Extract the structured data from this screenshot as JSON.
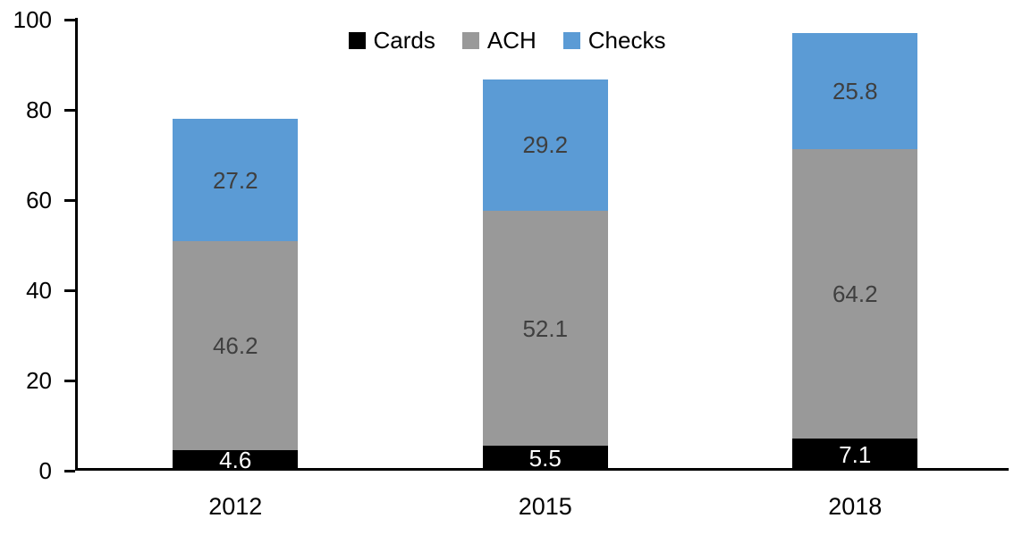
{
  "chart_data": {
    "type": "bar",
    "stacked": true,
    "categories": [
      "2012",
      "2015",
      "2018"
    ],
    "series": [
      {
        "name": "Cards",
        "color": "#000000",
        "label_color": "#ffffff",
        "values": [
          4.6,
          5.5,
          7.1
        ]
      },
      {
        "name": "ACH",
        "color": "#999999",
        "label_color": "#3f3f3f",
        "values": [
          46.2,
          52.1,
          64.2
        ]
      },
      {
        "name": "Checks",
        "color": "#5b9bd5",
        "label_color": "#3f3f3f",
        "values": [
          27.2,
          29.2,
          25.8
        ]
      }
    ],
    "totals": [
      78.0,
      86.8,
      97.1
    ],
    "y_axis": {
      "min": 0,
      "max": 100,
      "tick_step": 20,
      "tick_labels": [
        "0",
        "20",
        "40",
        "60",
        "80",
        "100"
      ]
    },
    "xlabel": "",
    "ylabel": "",
    "grid": false,
    "legend_position": "top-center",
    "axis_color": "#000000"
  }
}
